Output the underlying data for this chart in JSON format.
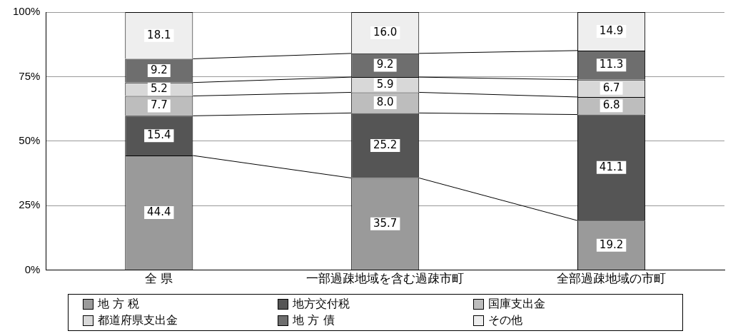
{
  "chart_data": {
    "type": "bar",
    "stacked": true,
    "categories": [
      "全 県",
      "一部過疎地域を含む過疎市町",
      "全部過疎地域の市町"
    ],
    "series": [
      {
        "name": "地 方 税",
        "color": "#9a9a9a",
        "values": [
          44.4,
          35.7,
          19.2
        ],
        "value_labels": [
          "44.4",
          "35.7",
          "19.2"
        ]
      },
      {
        "name": "地方交付税",
        "color": "#555555",
        "values": [
          15.4,
          25.2,
          41.1
        ],
        "value_labels": [
          "15.4",
          "25.2",
          "41.1"
        ]
      },
      {
        "name": "国庫支出金",
        "color": "#bdbdbd",
        "values": [
          7.7,
          8.0,
          6.8
        ],
        "value_labels": [
          "7.7",
          "8.0",
          "6.8"
        ]
      },
      {
        "name": "都道府県支出金",
        "color": "#d8d8d8",
        "values": [
          5.2,
          5.9,
          6.7
        ],
        "value_labels": [
          "5.2",
          "5.9",
          "6.7"
        ]
      },
      {
        "name": "地 方 債",
        "color": "#6e6e6e",
        "values": [
          9.2,
          9.2,
          11.3
        ],
        "value_labels": [
          "9.2",
          "9.2",
          "11.3"
        ]
      },
      {
        "name": "その他",
        "color": "#eeeeee",
        "values": [
          18.1,
          16.0,
          14.9
        ],
        "value_labels": [
          "18.1",
          "16.0",
          "14.9"
        ]
      }
    ],
    "ylim": [
      0,
      100
    ],
    "yticks": [
      {
        "value": 0,
        "label": "0%"
      },
      {
        "value": 25,
        "label": "25%"
      },
      {
        "value": 50,
        "label": "50%"
      },
      {
        "value": 75,
        "label": "75%"
      },
      {
        "value": 100,
        "label": "100%"
      }
    ],
    "grid": "y",
    "legend": "bottom"
  }
}
